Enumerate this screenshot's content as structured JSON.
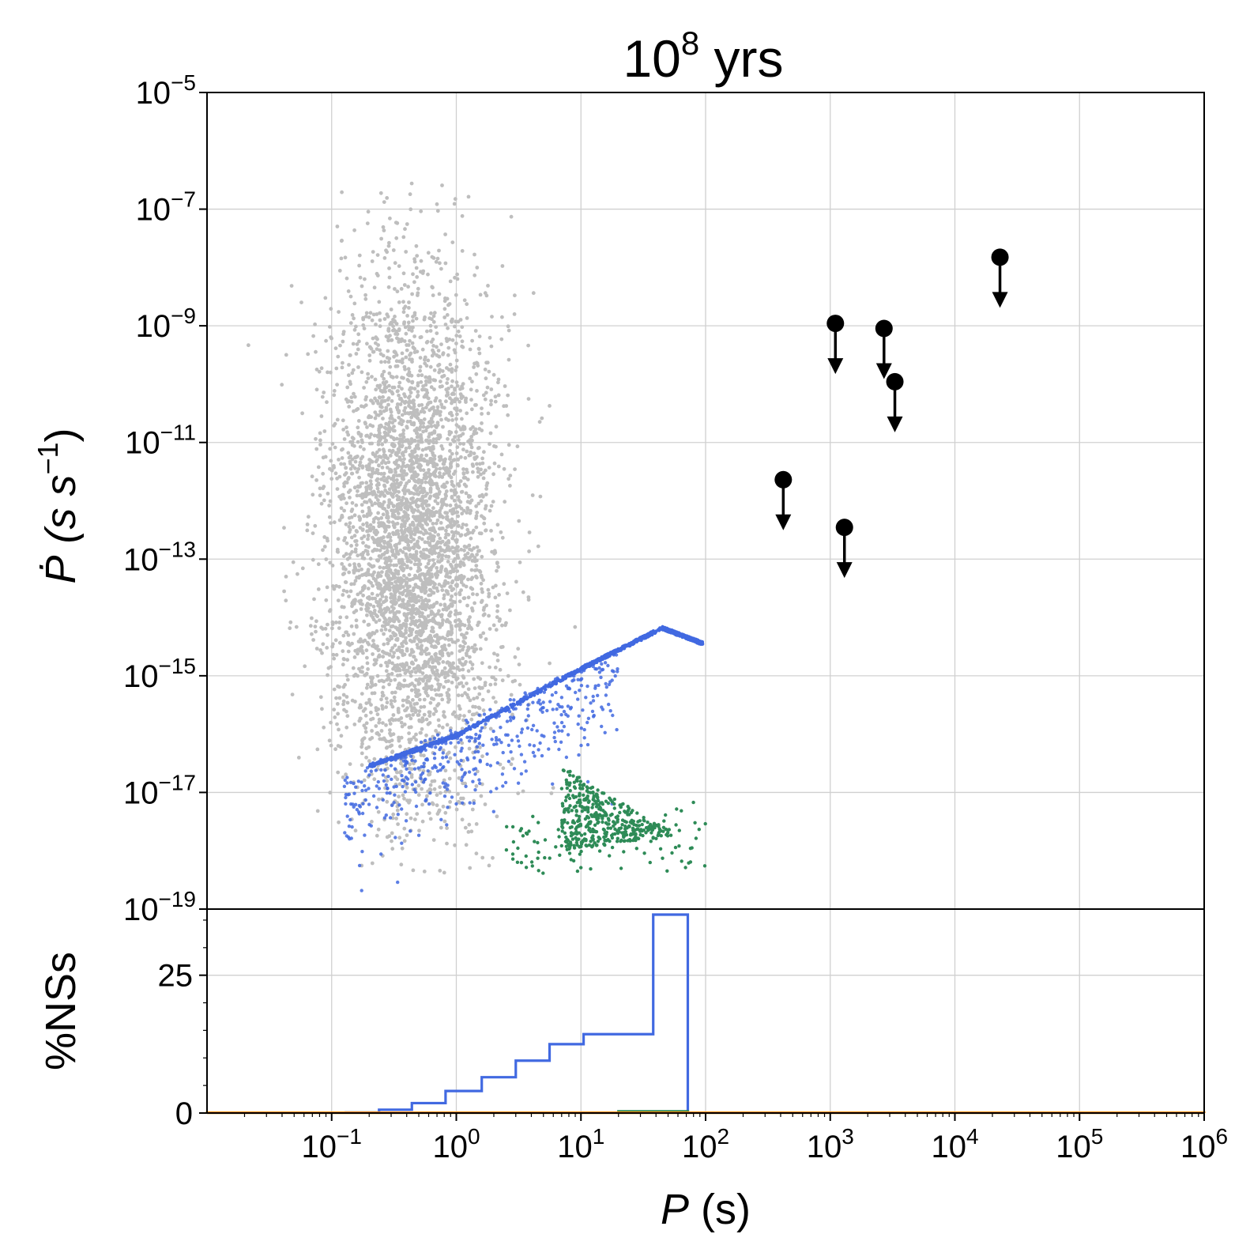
{
  "chart_data": [
    {
      "type": "scatter",
      "title": "10^8 yrs",
      "title_base": "10",
      "title_exp": "8",
      "title_suffix": " yrs",
      "ylabel": "Ṗ (s s^-1)",
      "ylabel_main": "Ṗ (s s",
      "ylabel_exp": "−1",
      "ylabel_close": ")",
      "xscale": "log",
      "yscale": "log",
      "xlim": [
        0.01,
        1000000
      ],
      "ylim": [
        1e-19,
        1e-05
      ],
      "grid": true,
      "y_ticks": [
        {
          "value": 1e-05,
          "base": "10",
          "exp": "−5"
        },
        {
          "value": 1e-07,
          "base": "10",
          "exp": "−7"
        },
        {
          "value": 1e-09,
          "base": "10",
          "exp": "−9"
        },
        {
          "value": 1e-11,
          "base": "10",
          "exp": "−11"
        },
        {
          "value": 1e-13,
          "base": "10",
          "exp": "−13"
        },
        {
          "value": 1e-15,
          "base": "10",
          "exp": "−15"
        },
        {
          "value": 1e-17,
          "base": "10",
          "exp": "−17"
        },
        {
          "value": 1e-19,
          "base": "10",
          "exp": "−19"
        }
      ],
      "series": [
        {
          "color": "#bebebe",
          "point_count": 4200,
          "distribution": {
            "log_p_center": -0.35,
            "log_p_sigma": 0.33,
            "log_pdot_center": -12.7,
            "log_pdot_sigma": 2.3,
            "log_pdot_min": -18.4,
            "log_pdot_max": -6.5
          }
        },
        {
          "color": "#4169e1",
          "point_count": 1300,
          "spin_down_line": [
            [
              0.2,
              3e-17
            ],
            [
              1,
              1e-16
            ],
            [
              10,
              1.4e-15
            ],
            [
              45,
              7e-15
            ],
            [
              95,
              3.8e-15
            ]
          ],
          "scatter_below": {
            "log_p_min": -0.9,
            "log_p_max": 1.3,
            "log_pdot_min": -18.9,
            "log_pdot_max": -16.3
          }
        },
        {
          "color": "#2e8b57",
          "point_count": 520,
          "triangle": [
            [
              7,
              2.8e-17
            ],
            [
              60,
              1.8e-18
            ],
            [
              7,
              1e-18
            ]
          ],
          "scatter_outliers": {
            "log_p_min": 0.4,
            "log_p_max": 2.0,
            "log_pdot_min": -18.4,
            "log_pdot_max": -16.6
          }
        },
        {
          "color": "#000000",
          "marker": "upper-limit",
          "points": [
            {
              "p": 1100,
              "pdot": 1.1e-09
            },
            {
              "p": 2700,
              "pdot": 9e-10
            },
            {
              "p": 3300,
              "pdot": 1.1e-10
            },
            {
              "p": 420,
              "pdot": 2.3e-12
            },
            {
              "p": 1300,
              "pdot": 3.5e-13
            },
            {
              "p": 23000,
              "pdot": 1.5e-08
            }
          ]
        }
      ]
    },
    {
      "type": "histogram",
      "ylabel": "%NSs",
      "xlabel": "P (s)",
      "xlabel_var": "P",
      "xlabel_unit": " (s)",
      "xscale": "log",
      "xlim": [
        0.01,
        1000000
      ],
      "ylim": [
        0,
        37
      ],
      "grid": true,
      "y_ticks": [
        {
          "value": 0,
          "label": "0"
        },
        {
          "value": 25,
          "label": "25"
        }
      ],
      "x_ticks": [
        {
          "value": 0.1,
          "base": "10",
          "exp": "−1"
        },
        {
          "value": 1,
          "base": "10",
          "exp": "0"
        },
        {
          "value": 10,
          "base": "10",
          "exp": "1"
        },
        {
          "value": 100,
          "base": "10",
          "exp": "2"
        },
        {
          "value": 1000,
          "base": "10",
          "exp": "3"
        },
        {
          "value": 10000,
          "base": "10",
          "exp": "4"
        },
        {
          "value": 100000,
          "base": "10",
          "exp": "5"
        },
        {
          "value": 1000000,
          "base": "10",
          "exp": "6"
        }
      ],
      "series": [
        {
          "color": "#4169e1",
          "bin_edges": [
            0.13,
            0.24,
            0.44,
            0.82,
            1.6,
            3.0,
            5.6,
            10.5,
            38,
            72
          ],
          "values": [
            0.1,
            0.6,
            1.8,
            4.0,
            6.5,
            9.5,
            12.5,
            14.3,
            36.0
          ]
        },
        {
          "color": "#2e8b57",
          "bin_edges": [
            20,
            38,
            72
          ],
          "values": [
            0.3,
            0.3
          ]
        },
        {
          "color": "#ff8c00",
          "bin_edges": [
            0.01,
            1000000
          ],
          "values": [
            0.05
          ]
        }
      ]
    }
  ]
}
